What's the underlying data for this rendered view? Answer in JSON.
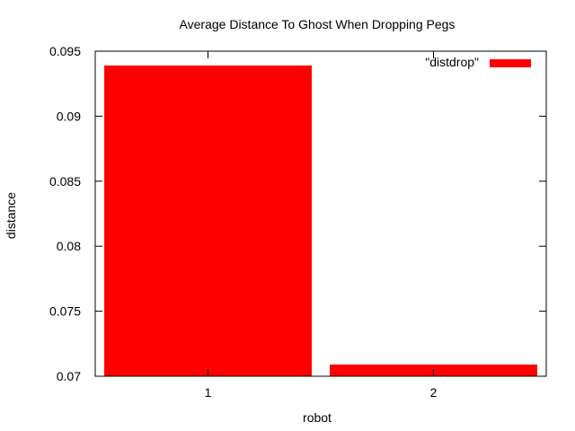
{
  "chart_data": {
    "type": "bar",
    "title": "Average Distance To Ghost When Dropping Pegs",
    "xlabel": "robot",
    "ylabel": "distance",
    "categories": [
      "1",
      "2"
    ],
    "series": [
      {
        "name": "\"distdrop\"",
        "values": [
          0.0939,
          0.0709
        ],
        "color": "#ff0000"
      }
    ],
    "ylim": [
      0.07,
      0.095
    ],
    "yticks": [
      0.07,
      0.075,
      0.08,
      0.085,
      0.09,
      0.095
    ],
    "ytick_labels": [
      "0.07",
      "0.075",
      "0.08",
      "0.085",
      "0.09",
      "0.095"
    ],
    "grid": false,
    "legend_position": "top-right"
  }
}
